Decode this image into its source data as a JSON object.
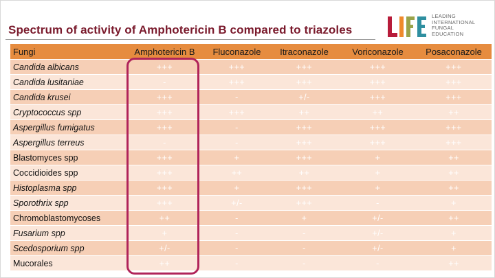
{
  "title": "Spectrum of activity of Amphotericin B compared to triazoles",
  "logo": {
    "wordmark": "LIFE",
    "lines": [
      "LEADING",
      "INTERNATIONAL",
      "FUNGAL",
      "EDUCATION"
    ],
    "colors": {
      "brand_red": "#b71c3a",
      "brand_orange": "#ef8a2c",
      "brand_olive": "#9aa34a",
      "brand_teal": "#2f8fa0"
    }
  },
  "table": {
    "headers": [
      "Fungi",
      "Amphotericin B",
      "Fluconazole",
      "Itraconazole",
      "Voriconazole",
      "Posaconazole"
    ],
    "rows": [
      {
        "name": "Candida albicans",
        "italic": true,
        "values": [
          "+++",
          "+++",
          "+++",
          "+++",
          "+++"
        ]
      },
      {
        "name": "Candida lusitaniae",
        "italic": true,
        "values": [
          "-",
          "+++",
          "+++",
          "+++",
          "+++"
        ]
      },
      {
        "name": "Candida krusei",
        "italic": true,
        "values": [
          "+++",
          "-",
          "+/-",
          "+++",
          "+++"
        ]
      },
      {
        "name": "Cryptococcus spp",
        "italic": true,
        "values": [
          "+++",
          "+++",
          "++",
          "++",
          "++"
        ]
      },
      {
        "name": "Aspergillus fumigatus",
        "italic": true,
        "values": [
          "+++",
          "-",
          "+++",
          "+++",
          "+++"
        ]
      },
      {
        "name": "Aspergillus terreus",
        "italic": true,
        "values": [
          "-",
          "-",
          "+++",
          "+++",
          "+++"
        ]
      },
      {
        "name": "Blastomyces spp",
        "italic": false,
        "values": [
          "+++",
          "+",
          "+++",
          "+",
          "++"
        ]
      },
      {
        "name": "Coccidioides spp",
        "italic": false,
        "values": [
          "+++",
          "++",
          "++",
          "+",
          "++"
        ]
      },
      {
        "name": "Histoplasma spp",
        "italic": true,
        "values": [
          "+++",
          "+",
          "+++",
          "+",
          "++"
        ]
      },
      {
        "name": "Sporothrix spp",
        "italic": true,
        "values": [
          "+++",
          "+/-",
          "+++",
          "-",
          "+"
        ]
      },
      {
        "name": "Chromoblastomycoses",
        "italic": false,
        "values": [
          "++",
          "-",
          "+",
          "+/-",
          "++"
        ]
      },
      {
        "name": "Fusarium spp",
        "italic": true,
        "values": [
          "+",
          "-",
          "-",
          "+/-",
          "+"
        ]
      },
      {
        "name": "Scedosporium spp",
        "italic": true,
        "values": [
          "+/-",
          "-",
          "-",
          "+/-",
          "+"
        ]
      },
      {
        "name": "Mucorales",
        "italic": false,
        "values": [
          "++",
          "-",
          "-",
          "-",
          "++"
        ]
      }
    ]
  },
  "colors": {
    "title": "#7a1a2c",
    "header_bg": "#e68c3f",
    "row_dark": "#f6cfb6",
    "row_light": "#fbe6d9",
    "highlight_border": "#b0245a"
  }
}
